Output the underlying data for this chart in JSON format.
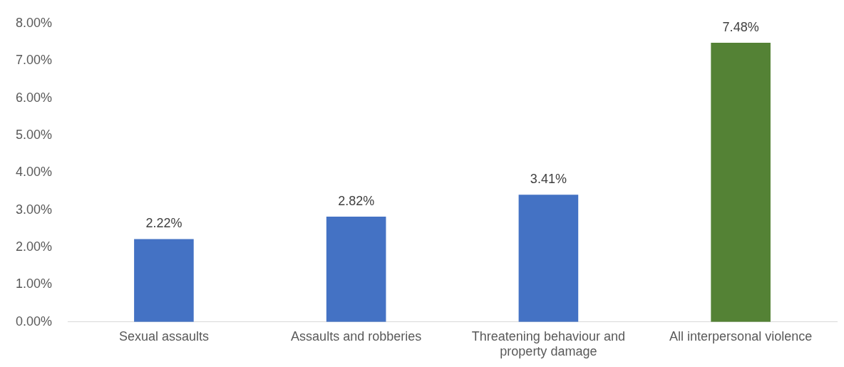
{
  "chart_data": {
    "type": "bar",
    "categories": [
      "Sexual assaults",
      "Assaults and robberies",
      "Threatening behaviour and property damage",
      "All interpersonal violence"
    ],
    "values": [
      2.22,
      2.82,
      3.41,
      7.48
    ],
    "colors": [
      "#4472c4",
      "#4472c4",
      "#4472c4",
      "#548235"
    ],
    "value_labels": [
      "2.22%",
      "2.82%",
      "3.41%",
      "7.48%"
    ],
    "ylim": [
      0,
      8
    ],
    "yticks": [
      {
        "value": 0,
        "label": "0.00%"
      },
      {
        "value": 1,
        "label": "1.00%"
      },
      {
        "value": 2,
        "label": "2.00%"
      },
      {
        "value": 3,
        "label": "3.00%"
      },
      {
        "value": 4,
        "label": "4.00%"
      },
      {
        "value": 5,
        "label": "5.00%"
      },
      {
        "value": 6,
        "label": "6.00%"
      },
      {
        "value": 7,
        "label": "7.00%"
      },
      {
        "value": 8,
        "label": "8.00%"
      }
    ],
    "grid": false,
    "legend": false
  }
}
